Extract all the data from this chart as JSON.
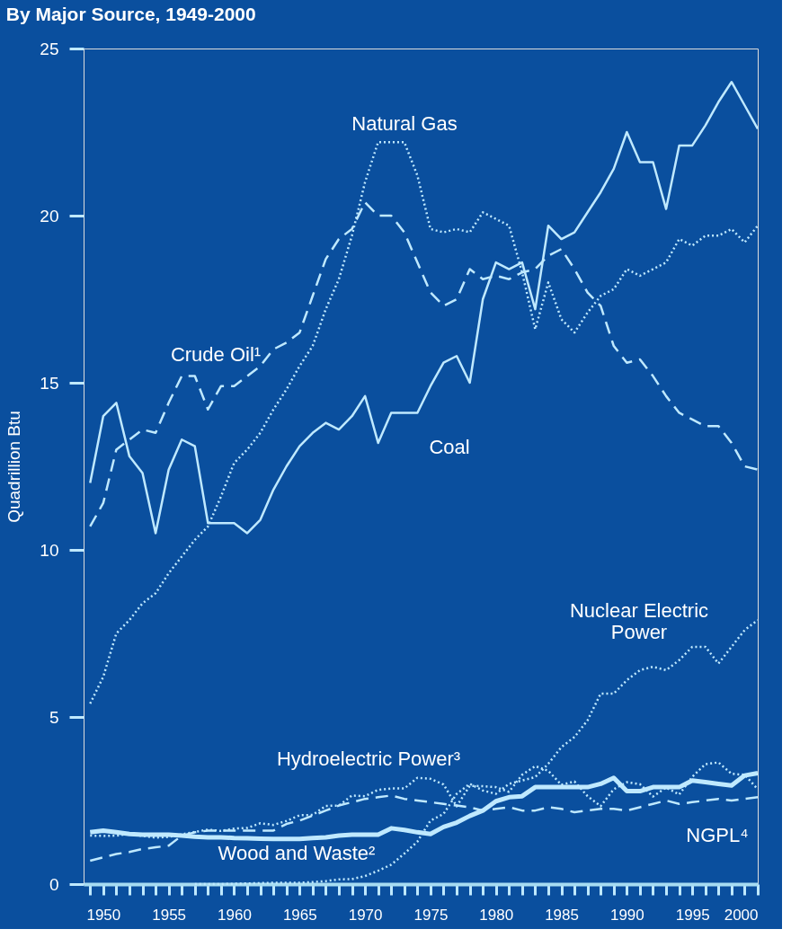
{
  "chart_data": {
    "type": "line",
    "title": "By Major Source, 1949-2000",
    "ylabel": "Quadrillion Btu",
    "x": [
      1949,
      1950,
      1951,
      1952,
      1953,
      1954,
      1955,
      1956,
      1957,
      1958,
      1959,
      1960,
      1961,
      1962,
      1963,
      1964,
      1965,
      1966,
      1967,
      1968,
      1969,
      1970,
      1971,
      1972,
      1973,
      1974,
      1975,
      1976,
      1977,
      1978,
      1979,
      1980,
      1981,
      1982,
      1983,
      1984,
      1985,
      1986,
      1987,
      1988,
      1989,
      1990,
      1991,
      1992,
      1993,
      1994,
      1995,
      1996,
      1997,
      1998,
      1999,
      2000
    ],
    "series": [
      {
        "name": "Natural Gas",
        "color": "#bfe9ff",
        "line_style": "dotted",
        "values": [
          5.4,
          6.2,
          7.5,
          7.9,
          8.4,
          8.7,
          9.3,
          9.8,
          10.3,
          10.7,
          11.6,
          12.6,
          13.0,
          13.5,
          14.2,
          14.8,
          15.5,
          16.1,
          17.2,
          18.1,
          19.4,
          21.0,
          22.2,
          22.2,
          22.2,
          21.2,
          19.6,
          19.5,
          19.6,
          19.5,
          20.1,
          19.9,
          19.7,
          18.3,
          16.6,
          18.0,
          16.9,
          16.5,
          17.1,
          17.6,
          17.8,
          18.4,
          18.2,
          18.4,
          18.6,
          19.3,
          19.1,
          19.4,
          19.4,
          19.6,
          19.2,
          19.7
        ]
      },
      {
        "name": "Crude Oil¹",
        "color": "#bfe9ff",
        "line_style": "dashed",
        "values": [
          10.7,
          11.4,
          13.0,
          13.3,
          13.6,
          13.5,
          14.4,
          15.2,
          15.2,
          14.2,
          14.9,
          14.9,
          15.2,
          15.5,
          16.0,
          16.2,
          16.5,
          17.6,
          18.7,
          19.3,
          19.6,
          20.4,
          20.0,
          20.0,
          19.5,
          18.6,
          17.7,
          17.3,
          17.5,
          18.4,
          18.1,
          18.2,
          18.1,
          18.3,
          18.4,
          18.8,
          19.0,
          18.4,
          17.7,
          17.3,
          16.1,
          15.6,
          15.7,
          15.2,
          14.6,
          14.1,
          13.9,
          13.7,
          13.7,
          13.2,
          12.5,
          12.4
        ]
      },
      {
        "name": "Coal",
        "color": "#bfe9ff",
        "line_style": "solid",
        "values": [
          12.0,
          14.0,
          14.4,
          12.8,
          12.3,
          10.5,
          12.4,
          13.3,
          13.1,
          10.8,
          10.8,
          10.8,
          10.5,
          10.9,
          11.8,
          12.5,
          13.1,
          13.5,
          13.8,
          13.6,
          14.0,
          14.6,
          13.2,
          14.1,
          14.1,
          14.1,
          14.9,
          15.6,
          15.8,
          15.0,
          17.5,
          18.6,
          18.4,
          18.6,
          17.2,
          19.7,
          19.3,
          19.5,
          20.1,
          20.7,
          21.4,
          22.5,
          21.6,
          21.6,
          20.2,
          22.1,
          22.1,
          22.7,
          23.4,
          24.0,
          23.3,
          22.6
        ]
      },
      {
        "name": "Nuclear Electric\nPower",
        "color": "#bfe9ff",
        "line_style": "dotted",
        "values": [
          null,
          null,
          null,
          null,
          null,
          null,
          null,
          null,
          0.0,
          0.0,
          0.0,
          0.01,
          0.02,
          0.03,
          0.04,
          0.04,
          0.04,
          0.06,
          0.09,
          0.14,
          0.15,
          0.24,
          0.4,
          0.58,
          0.91,
          1.27,
          1.9,
          2.1,
          2.7,
          3.0,
          2.8,
          2.7,
          3.0,
          3.1,
          3.2,
          3.6,
          4.1,
          4.4,
          4.9,
          5.7,
          5.7,
          6.1,
          6.4,
          6.5,
          6.4,
          6.7,
          7.1,
          7.1,
          6.6,
          7.1,
          7.6,
          7.9
        ]
      },
      {
        "name": "Hydroelectric Power³",
        "color": "#bfe9ff",
        "line_style": "dotted",
        "values": [
          1.45,
          1.44,
          1.45,
          1.5,
          1.44,
          1.39,
          1.41,
          1.49,
          1.56,
          1.63,
          1.59,
          1.66,
          1.68,
          1.82,
          1.77,
          1.89,
          2.06,
          2.07,
          2.34,
          2.35,
          2.65,
          2.63,
          2.82,
          2.86,
          2.86,
          3.18,
          3.15,
          2.98,
          2.33,
          2.94,
          2.93,
          2.9,
          2.76,
          3.27,
          3.53,
          3.39,
          2.97,
          3.07,
          2.63,
          2.33,
          2.84,
          3.05,
          2.99,
          2.62,
          2.89,
          2.68,
          3.21,
          3.59,
          3.64,
          3.3,
          3.27,
          2.84
        ]
      },
      {
        "name": "Wood and Waste²",
        "color": "#bfe9ff",
        "line_style": "solid",
        "values": [
          1.55,
          1.6,
          1.55,
          1.5,
          1.48,
          1.48,
          1.48,
          1.45,
          1.42,
          1.4,
          1.4,
          1.38,
          1.37,
          1.36,
          1.35,
          1.35,
          1.35,
          1.38,
          1.4,
          1.45,
          1.48,
          1.48,
          1.48,
          1.67,
          1.62,
          1.55,
          1.5,
          1.71,
          1.84,
          2.04,
          2.2,
          2.48,
          2.6,
          2.63,
          2.9,
          2.9,
          2.9,
          2.9,
          2.9,
          3.0,
          3.18,
          2.78,
          2.78,
          2.9,
          2.9,
          2.9,
          3.1,
          3.05,
          3.0,
          2.95,
          3.25,
          3.32
        ]
      },
      {
        "name": "NGPL⁴",
        "color": "#bfe9ff",
        "line_style": "dashed",
        "values": [
          0.7,
          0.8,
          0.9,
          0.96,
          1.05,
          1.1,
          1.15,
          1.45,
          1.55,
          1.6,
          1.6,
          1.6,
          1.6,
          1.6,
          1.6,
          1.8,
          1.9,
          2.05,
          2.2,
          2.35,
          2.45,
          2.55,
          2.6,
          2.65,
          2.55,
          2.5,
          2.45,
          2.4,
          2.35,
          2.3,
          2.2,
          2.25,
          2.3,
          2.2,
          2.2,
          2.3,
          2.25,
          2.15,
          2.2,
          2.25,
          2.25,
          2.2,
          2.3,
          2.4,
          2.5,
          2.4,
          2.45,
          2.5,
          2.55,
          2.5,
          2.55,
          2.6
        ]
      }
    ],
    "xlim": [
      1948.5,
      2000
    ],
    "xticks": [
      {
        "value": 1949,
        "label": null
      },
      1950,
      {
        "value": 1951,
        "label": null
      },
      {
        "value": 1952,
        "label": null
      },
      {
        "value": 1953,
        "label": null
      },
      {
        "value": 1954,
        "label": null
      },
      1955,
      {
        "value": 1956,
        "label": null
      },
      {
        "value": 1957,
        "label": null
      },
      {
        "value": 1958,
        "label": null
      },
      {
        "value": 1959,
        "label": null
      },
      1960,
      {
        "value": 1961,
        "label": null
      },
      {
        "value": 1962,
        "label": null
      },
      {
        "value": 1963,
        "label": null
      },
      {
        "value": 1964,
        "label": null
      },
      1965,
      {
        "value": 1966,
        "label": null
      },
      {
        "value": 1967,
        "label": null
      },
      {
        "value": 1968,
        "label": null
      },
      {
        "value": 1969,
        "label": null
      },
      1970,
      {
        "value": 1971,
        "label": null
      },
      {
        "value": 1972,
        "label": null
      },
      {
        "value": 1973,
        "label": null
      },
      {
        "value": 1974,
        "label": null
      },
      1975,
      {
        "value": 1976,
        "label": null
      },
      {
        "value": 1977,
        "label": null
      },
      {
        "value": 1978,
        "label": null
      },
      {
        "value": 1979,
        "label": null
      },
      1980,
      {
        "value": 1981,
        "label": null
      },
      {
        "value": 1982,
        "label": null
      },
      {
        "value": 1983,
        "label": null
      },
      {
        "value": 1984,
        "label": null
      },
      1985,
      {
        "value": 1986,
        "label": null
      },
      {
        "value": 1987,
        "label": null
      },
      {
        "value": 1988,
        "label": null
      },
      {
        "value": 1989,
        "label": null
      },
      1990,
      {
        "value": 1991,
        "label": null
      },
      {
        "value": 1992,
        "label": null
      },
      {
        "value": 1993,
        "label": null
      },
      {
        "value": 1994,
        "label": null
      },
      1995,
      {
        "value": 1996,
        "label": null
      },
      {
        "value": 1997,
        "label": null
      },
      {
        "value": 1998,
        "label": null
      },
      {
        "value": 1999,
        "label": null
      },
      2000
    ],
    "ylim": [
      0,
      25
    ],
    "yticks": [
      0,
      5,
      10,
      15,
      20,
      25
    ],
    "grid": false,
    "legend": false
  }
}
